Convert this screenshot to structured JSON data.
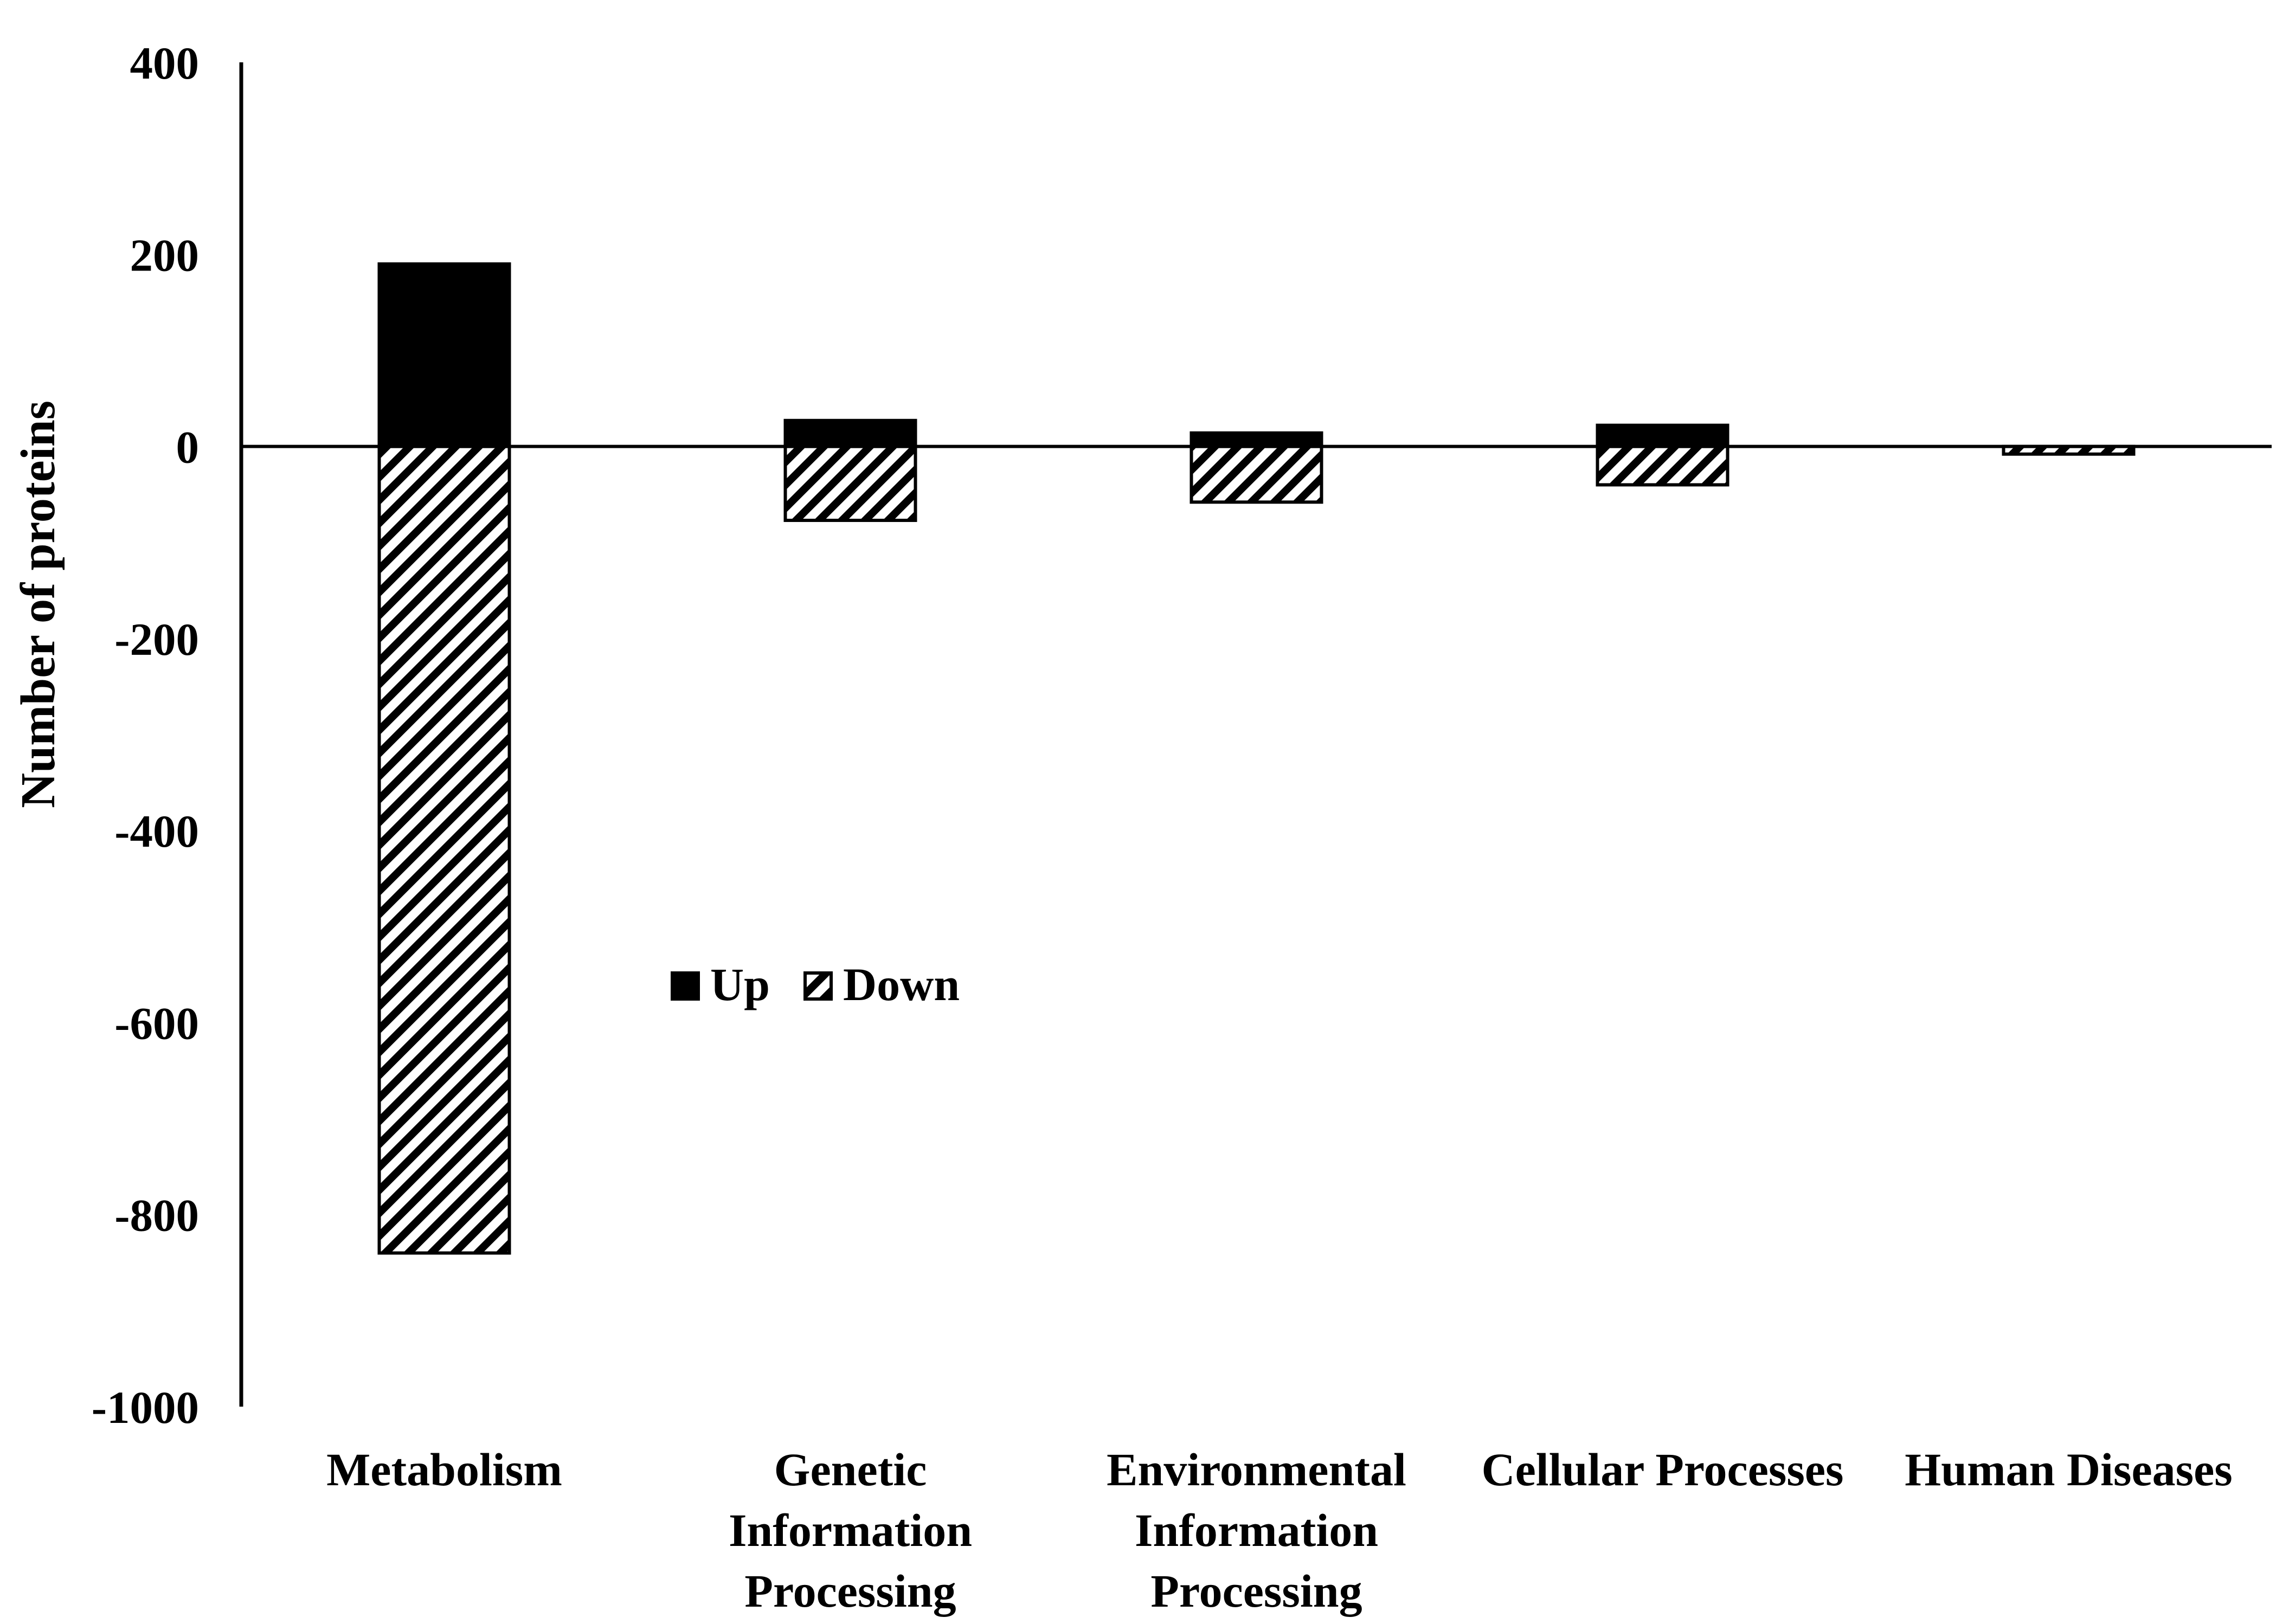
{
  "chart_data": {
    "type": "bar",
    "title": "",
    "xlabel": "",
    "ylabel": "Number of proteins",
    "ylim": [
      -1000,
      400
    ],
    "yticks": [
      400,
      200,
      0,
      -200,
      -400,
      -600,
      -800,
      -1000
    ],
    "ytick_labels": [
      "400",
      "200",
      "0",
      "-200",
      "-400",
      "-600",
      "-800",
      "-1000"
    ],
    "grid": false,
    "legend_position": "center",
    "categories": [
      [
        "Metabolism"
      ],
      [
        "Genetic",
        "Information",
        "Processing"
      ],
      [
        "Environmental",
        "Information",
        "Processing"
      ],
      [
        "Cellular Processes"
      ],
      [
        "Human Diseases"
      ]
    ],
    "series": [
      {
        "name": "Up",
        "values": [
          190,
          27,
          14,
          22,
          0
        ],
        "color": "#000000",
        "pattern": "solid"
      },
      {
        "name": "Down",
        "values": [
          -840,
          -77,
          -58,
          -40,
          -8
        ],
        "color": "#000000",
        "pattern": "diagonal-hatch"
      }
    ]
  }
}
